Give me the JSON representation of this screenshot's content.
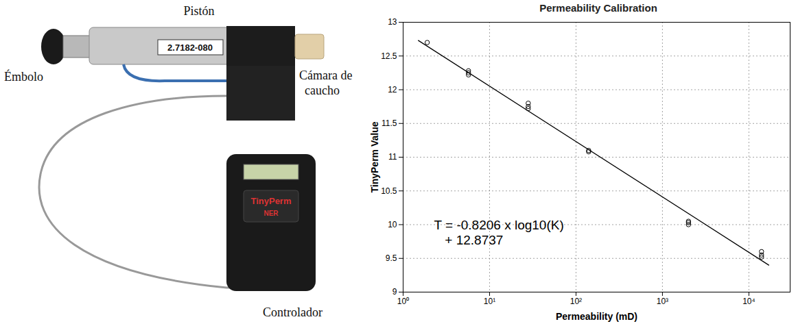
{
  "chart_data": {
    "type": "scatter",
    "title": "Permeability Calibration",
    "x_label": "Permeability (mD)",
    "y_label": "TinyPerm Value",
    "log": "x",
    "grid": true,
    "xlim": [
      1,
      30000
    ],
    "ylim": [
      9,
      13
    ],
    "xticks": [
      {
        "value": 1,
        "label": "10⁰"
      },
      {
        "value": 10,
        "label": "10¹"
      },
      {
        "value": 100,
        "label": "10²"
      },
      {
        "value": 1000,
        "label": "10³"
      },
      {
        "value": 10000,
        "label": "10⁴"
      }
    ],
    "yticks": [
      9,
      9.5,
      10,
      10.5,
      11,
      11.5,
      12,
      12.5,
      13
    ],
    "annotations": [
      "T = -0.8206 x log10(K)",
      "+ 12.8737"
    ],
    "series": [
      {
        "type": "scatter",
        "marker": "circle",
        "color": "#000000",
        "x": [
          1.9,
          5.7,
          5.7,
          5.7,
          28,
          28,
          28,
          140,
          140,
          2000,
          2000,
          2000,
          14000,
          14000,
          14000
        ],
        "values": [
          12.7,
          12.28,
          12.25,
          12.22,
          11.8,
          11.75,
          11.72,
          11.1,
          11.08,
          10.05,
          10.03,
          10.0,
          9.6,
          9.55,
          9.52
        ]
      },
      {
        "type": "line",
        "line_style": "solid",
        "color": "#000000",
        "x": [
          1.5,
          17000
        ],
        "values": [
          12.73,
          9.4
        ]
      }
    ]
  },
  "photo": {
    "labels": [
      "Pistón",
      "Émbolo",
      "Cámara de caucho",
      "Controlador"
    ],
    "device_texts": [
      "2.7182-080",
      "TinyPerm",
      "NER"
    ]
  }
}
